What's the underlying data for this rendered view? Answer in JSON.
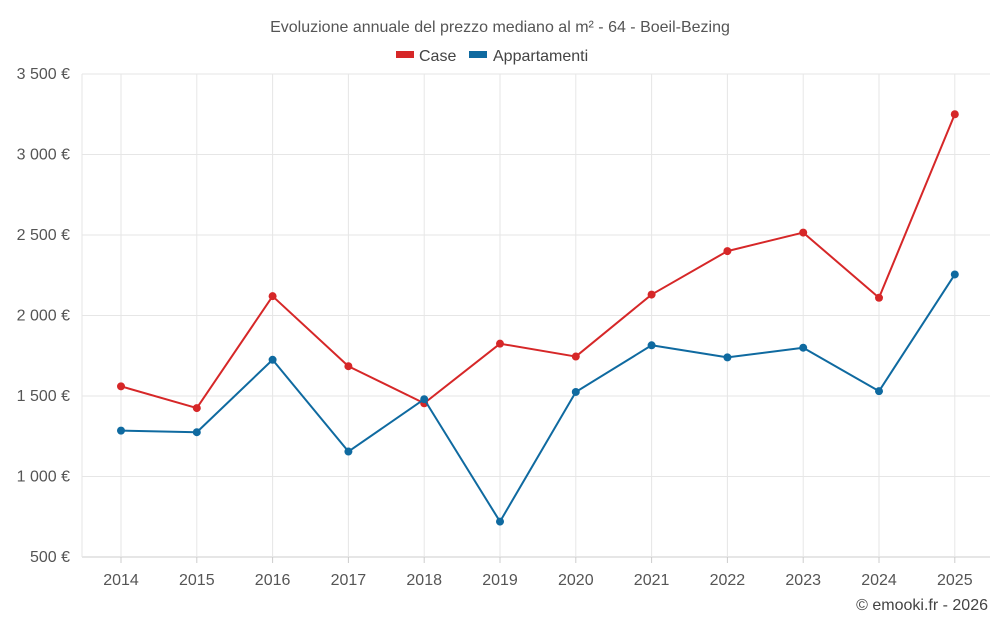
{
  "chart_data": {
    "type": "line",
    "title": "Evoluzione annuale del prezzo mediano al m² - 64 - Boeil-Bezing",
    "categories": [
      "2014",
      "2015",
      "2016",
      "2017",
      "2018",
      "2019",
      "2020",
      "2021",
      "2022",
      "2023",
      "2024",
      "2025"
    ],
    "series": [
      {
        "name": "Case",
        "color": "#d62728",
        "values": [
          1560,
          1425,
          2120,
          1685,
          1455,
          1825,
          1745,
          2130,
          2400,
          2515,
          2110,
          3250
        ]
      },
      {
        "name": "Appartamenti",
        "color": "#0f6aa0",
        "values": [
          1285,
          1275,
          1725,
          1155,
          1480,
          720,
          1525,
          1815,
          1740,
          1800,
          1530,
          2255
        ]
      }
    ],
    "ylim": [
      500,
      3500
    ],
    "yticks": [
      500,
      1000,
      1500,
      2000,
      2500,
      3000,
      3500
    ],
    "ytick_labels": [
      "500 €",
      "1 000 €",
      "1 500 €",
      "2 000 €",
      "2 500 €",
      "3 000 €",
      "3 500 €"
    ],
    "xlabel": "",
    "ylabel": "",
    "legend_position": "top-center",
    "grid": true
  },
  "credit": "© emooki.fr - 2026"
}
